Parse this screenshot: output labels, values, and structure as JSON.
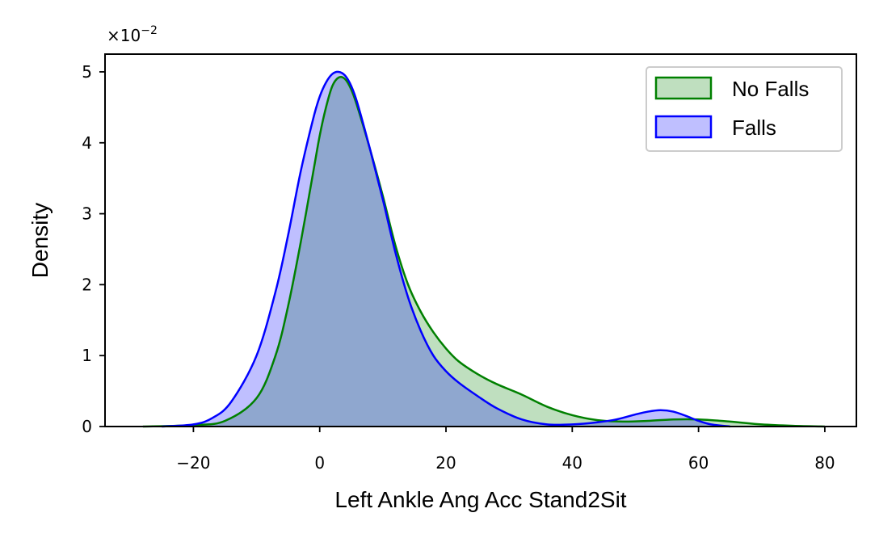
{
  "chart_data": {
    "type": "area",
    "title": "",
    "xlabel": "Left Ankle Ang Acc Stand2Sit",
    "ylabel": "Density",
    "xlim": [
      -34,
      85
    ],
    "ylim": [
      0,
      5.25
    ],
    "y_scale_offset_text": "×10",
    "y_scale_exponent": "−2",
    "x_ticks": [
      -20,
      0,
      20,
      40,
      60,
      80
    ],
    "x_tick_labels": [
      "−20",
      "0",
      "20",
      "40",
      "60",
      "80"
    ],
    "y_ticks": [
      0,
      1,
      2,
      3,
      4,
      5
    ],
    "y_tick_labels": [
      "0",
      "1",
      "2",
      "3",
      "4",
      "5"
    ],
    "grid": false,
    "legend_position": "top-right",
    "series": [
      {
        "name": "No Falls",
        "stroke": "#008000",
        "fill": "#008000",
        "fill_opacity": 0.25,
        "x": [
          -28,
          -20,
          -15,
          -10,
          -7,
          -5,
          -3,
          -1,
          0,
          1,
          2,
          3,
          4,
          5,
          6,
          8,
          10,
          12,
          14,
          16,
          18,
          20,
          22,
          25,
          28,
          32,
          36,
          40,
          44,
          48,
          52,
          56,
          60,
          65,
          70,
          75,
          80
        ],
        "y": [
          0.0,
          0.02,
          0.08,
          0.4,
          1.0,
          1.7,
          2.6,
          3.6,
          4.1,
          4.5,
          4.8,
          4.92,
          4.9,
          4.75,
          4.5,
          3.9,
          3.25,
          2.55,
          2.0,
          1.62,
          1.33,
          1.1,
          0.92,
          0.74,
          0.6,
          0.45,
          0.28,
          0.16,
          0.09,
          0.07,
          0.08,
          0.1,
          0.1,
          0.07,
          0.03,
          0.01,
          0.0
        ]
      },
      {
        "name": "Falls",
        "stroke": "#0000ff",
        "fill": "#0000ff",
        "fill_opacity": 0.25,
        "x": [
          -25,
          -20,
          -17,
          -14,
          -10,
          -7,
          -5,
          -3,
          -1,
          0,
          1,
          2,
          3,
          4,
          5,
          6,
          8,
          10,
          12,
          14,
          16,
          18,
          20,
          22,
          25,
          28,
          32,
          36,
          40,
          44,
          47,
          50,
          52,
          54,
          56,
          58,
          60,
          62,
          65
        ],
        "y": [
          0.0,
          0.03,
          0.12,
          0.35,
          1.0,
          1.9,
          2.7,
          3.6,
          4.35,
          4.65,
          4.85,
          4.97,
          5.0,
          4.95,
          4.8,
          4.55,
          3.9,
          3.2,
          2.45,
          1.82,
          1.35,
          1.0,
          0.78,
          0.62,
          0.43,
          0.26,
          0.1,
          0.03,
          0.03,
          0.06,
          0.1,
          0.17,
          0.21,
          0.23,
          0.21,
          0.15,
          0.08,
          0.03,
          0.0
        ]
      }
    ]
  }
}
